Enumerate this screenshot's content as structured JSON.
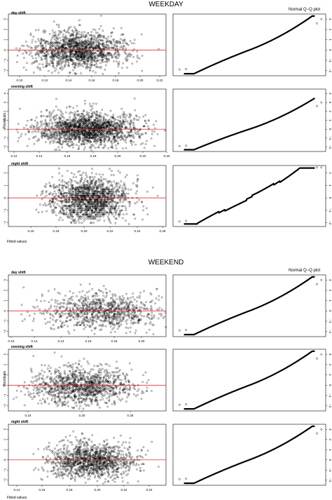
{
  "sections": [
    {
      "title": "WEEKDAY",
      "qq_title": "Normal Q−Q plot",
      "ylabel": "Residuals",
      "xlabel": "Fitted values",
      "panels": [
        {
          "label": "day shift",
          "x_ticks": [
            "0.10",
            "0.12",
            "0.14",
            "0.16",
            "0.18",
            "0.20",
            "0.22"
          ],
          "y_ticks": [
            "3",
            "2",
            "1",
            "0",
            "−1",
            "−2"
          ]
        },
        {
          "label": "evening shift",
          "x_ticks": [
            "0.12",
            "0.14",
            "0.16",
            "0.18",
            "0.20",
            "0.22",
            "0.24"
          ],
          "y_ticks": [
            "4",
            "3",
            "2",
            "1",
            "0",
            "−1",
            "−2"
          ]
        },
        {
          "label": "night shift",
          "x_ticks": [
            "0.16",
            "0.18",
            "0.20",
            "0.22",
            "0.24",
            "0.26"
          ],
          "y_ticks": [
            "2",
            "1",
            "0",
            "−1",
            "−2"
          ]
        }
      ]
    },
    {
      "title": "WEEKEND",
      "qq_title": "Normal Q−Q plot",
      "ylabel": "Residuals",
      "xlabel": "Fitted values",
      "panels": [
        {
          "label": "day shift",
          "x_ticks": [
            "0.10",
            "0.12",
            "0.14",
            "0.16",
            "0.18",
            "0.20"
          ],
          "y_ticks": [
            "3",
            "2",
            "1",
            "0",
            "−1",
            "−2"
          ]
        },
        {
          "label": "evening shift",
          "x_ticks": [
            "0.15",
            "0.20",
            "0.25"
          ],
          "y_ticks": [
            "3",
            "2",
            "1",
            "0",
            "−1",
            "−2"
          ]
        },
        {
          "label": "night shift",
          "x_ticks": [
            "0.14",
            "0.16",
            "0.18",
            "0.20",
            "0.22",
            "0.24"
          ],
          "y_ticks": [
            "3",
            "2",
            "1",
            "0",
            "−1",
            "−2"
          ]
        }
      ]
    }
  ],
  "colors": {
    "reference_line": "#e0302a",
    "points": "#000000",
    "frame": "#000000"
  },
  "chart_data": [
    {
      "type": "scatter",
      "group": "WEEKDAY",
      "panel": "day shift",
      "kind": "residuals vs fitted",
      "xlim": [
        0.1,
        0.225
      ],
      "ylim": [
        -2.5,
        3.5
      ],
      "reference_y": 0
    },
    {
      "type": "line",
      "group": "WEEKDAY",
      "panel": "day shift",
      "kind": "normal Q-Q",
      "xlim": [
        -3.5,
        3.5
      ],
      "ylim": [
        -2.5,
        3.5
      ]
    },
    {
      "type": "scatter",
      "group": "WEEKDAY",
      "panel": "evening shift",
      "kind": "residuals vs fitted",
      "xlim": [
        0.115,
        0.255
      ],
      "ylim": [
        -2.5,
        4.5
      ],
      "reference_y": 0
    },
    {
      "type": "line",
      "group": "WEEKDAY",
      "panel": "evening shift",
      "kind": "normal Q-Q",
      "xlim": [
        -3.5,
        3.5
      ],
      "ylim": [
        -2.5,
        4.5
      ]
    },
    {
      "type": "scatter",
      "group": "WEEKDAY",
      "panel": "night shift",
      "kind": "residuals vs fitted",
      "xlim": [
        0.15,
        0.275
      ],
      "ylim": [
        -2.3,
        2.6
      ],
      "reference_y": 0
    },
    {
      "type": "line",
      "group": "WEEKDAY",
      "panel": "night shift",
      "kind": "normal Q-Q",
      "xlim": [
        -3.5,
        3.5
      ],
      "ylim": [
        -2.3,
        2.6
      ]
    },
    {
      "type": "scatter",
      "group": "WEEKEND",
      "panel": "day shift",
      "kind": "residuals vs fitted",
      "xlim": [
        0.1,
        0.21
      ],
      "ylim": [
        -2.5,
        3.5
      ],
      "reference_y": 0
    },
    {
      "type": "line",
      "group": "WEEKEND",
      "panel": "day shift",
      "kind": "normal Q-Q",
      "xlim": [
        -3.5,
        3.5
      ],
      "ylim": [
        -2.5,
        3.5
      ]
    },
    {
      "type": "scatter",
      "group": "WEEKEND",
      "panel": "evening shift",
      "kind": "residuals vs fitted",
      "xlim": [
        0.13,
        0.29
      ],
      "ylim": [
        -2.5,
        3.5
      ],
      "reference_y": 0
    },
    {
      "type": "line",
      "group": "WEEKEND",
      "panel": "evening shift",
      "kind": "normal Q-Q",
      "xlim": [
        -3.5,
        3.5
      ],
      "ylim": [
        -2.5,
        3.5
      ]
    },
    {
      "type": "scatter",
      "group": "WEEKEND",
      "panel": "night shift",
      "kind": "residuals vs fitted",
      "xlim": [
        0.135,
        0.25
      ],
      "ylim": [
        -2.5,
        3.5
      ],
      "reference_y": 0
    },
    {
      "type": "line",
      "group": "WEEKEND",
      "panel": "night shift",
      "kind": "normal Q-Q",
      "xlim": [
        -3.5,
        3.5
      ],
      "ylim": [
        -2.5,
        3.5
      ]
    }
  ]
}
